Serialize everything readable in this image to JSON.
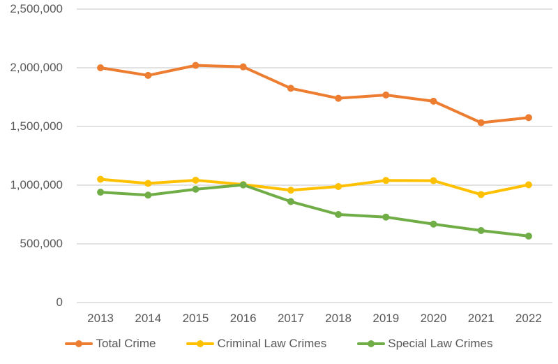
{
  "chart_data": {
    "type": "line",
    "title": "",
    "categories": [
      "2013",
      "2014",
      "2015",
      "2016",
      "2017",
      "2018",
      "2019",
      "2020",
      "2021",
      "2022"
    ],
    "series": [
      {
        "name": "Total Crime",
        "color": "#ED7D31",
        "values": [
          2000000,
          1935000,
          2020000,
          2008000,
          1825000,
          1740000,
          1768000,
          1715000,
          1532000,
          1575000
        ]
      },
      {
        "name": "Criminal Law Crimes",
        "color": "#FFC000",
        "values": [
          1050000,
          1015000,
          1042000,
          1005000,
          957000,
          988000,
          1040000,
          1038000,
          920000,
          1003000
        ]
      },
      {
        "name": "Special Law Crimes",
        "color": "#70AD47",
        "values": [
          940000,
          915000,
          965000,
          1002000,
          860000,
          750000,
          728000,
          668000,
          613000,
          566000
        ]
      }
    ],
    "xlabel": "",
    "ylabel": "",
    "ylim": [
      0,
      2500000
    ],
    "ytick_interval": 500000,
    "ytick_labels": [
      "0",
      "500,000",
      "1,000,000",
      "1,500,000",
      "2,000,000",
      "2,500,000"
    ],
    "grid": "horizontal-only",
    "legend_position": "bottom"
  },
  "colors": {
    "gridline": "#D9D9D9",
    "axis_text": "#595959",
    "background": "#FFFFFF"
  }
}
